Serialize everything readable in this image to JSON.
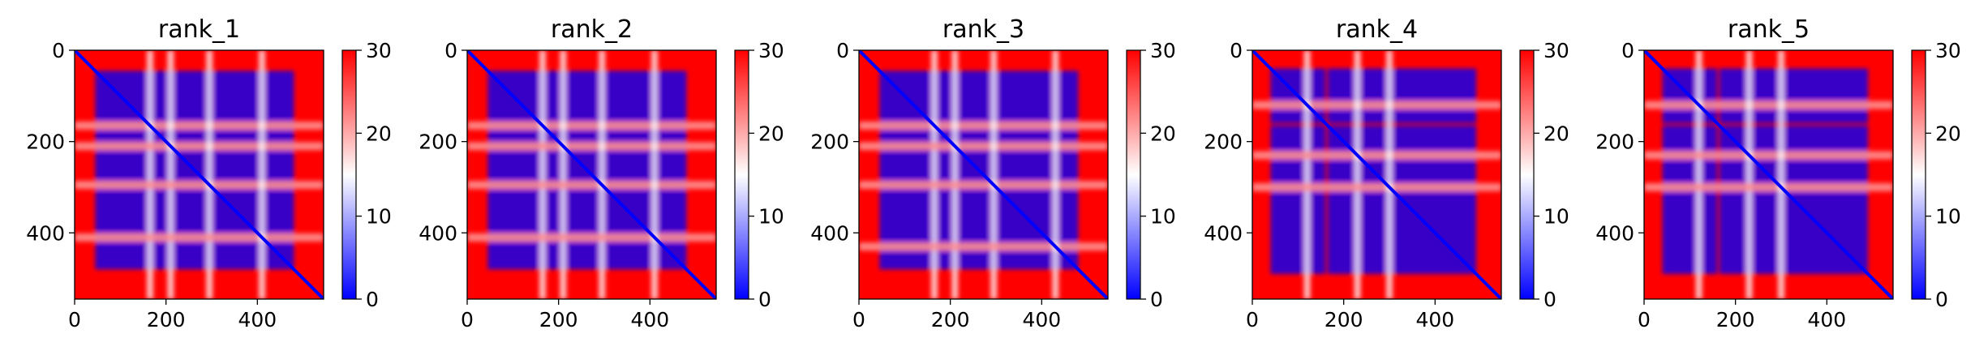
{
  "chart_data": [
    {
      "type": "heatmap",
      "title": "rank_1",
      "x_ticks": [
        0,
        200,
        400
      ],
      "y_ticks": [
        0,
        200,
        400
      ],
      "xlim": [
        0,
        545
      ],
      "ylim": [
        545,
        0
      ],
      "colorbar_ticks": [
        0,
        10,
        20,
        30
      ],
      "colorbar_range": [
        0,
        30
      ],
      "colormap": {
        "low": "#0000ff",
        "mid": "#ffffff",
        "high": "#ff0000"
      },
      "blocks": [
        [
          45,
          480
        ]
      ],
      "gaps": [
        165,
        210,
        295,
        410
      ]
    },
    {
      "type": "heatmap",
      "title": "rank_2",
      "x_ticks": [
        0,
        200,
        400
      ],
      "y_ticks": [
        0,
        200,
        400
      ],
      "xlim": [
        0,
        545
      ],
      "ylim": [
        545,
        0
      ],
      "colorbar_ticks": [
        0,
        10,
        20,
        30
      ],
      "colorbar_range": [
        0,
        30
      ],
      "colormap": {
        "low": "#0000ff",
        "mid": "#ffffff",
        "high": "#ff0000"
      },
      "blocks": [
        [
          45,
          480
        ]
      ],
      "gaps": [
        165,
        210,
        295,
        410
      ]
    },
    {
      "type": "heatmap",
      "title": "rank_3",
      "x_ticks": [
        0,
        200,
        400
      ],
      "y_ticks": [
        0,
        200,
        400
      ],
      "xlim": [
        0,
        545
      ],
      "ylim": [
        545,
        0
      ],
      "colorbar_ticks": [
        0,
        10,
        20,
        30
      ],
      "colorbar_range": [
        0,
        30
      ],
      "colormap": {
        "low": "#0000ff",
        "mid": "#ffffff",
        "high": "#ff0000"
      },
      "blocks": [
        [
          45,
          480
        ]
      ],
      "gaps": [
        165,
        210,
        295,
        430
      ]
    },
    {
      "type": "heatmap",
      "title": "rank_4",
      "x_ticks": [
        0,
        200,
        400
      ],
      "y_ticks": [
        0,
        200,
        400
      ],
      "xlim": [
        0,
        545
      ],
      "ylim": [
        545,
        0
      ],
      "colorbar_ticks": [
        0,
        10,
        20,
        30
      ],
      "colorbar_range": [
        0,
        30
      ],
      "colormap": {
        "low": "#0000ff",
        "mid": "#ffffff",
        "high": "#ff0000"
      },
      "blocks": [
        [
          40,
          160
        ],
        [
          165,
          490
        ]
      ],
      "gaps": [
        120,
        230,
        300
      ]
    },
    {
      "type": "heatmap",
      "title": "rank_5",
      "x_ticks": [
        0,
        200,
        400
      ],
      "y_ticks": [
        0,
        200,
        400
      ],
      "xlim": [
        0,
        545
      ],
      "ylim": [
        545,
        0
      ],
      "colorbar_ticks": [
        0,
        10,
        20,
        30
      ],
      "colorbar_range": [
        0,
        30
      ],
      "colormap": {
        "low": "#0000ff",
        "mid": "#ffffff",
        "high": "#ff0000"
      },
      "blocks": [
        [
          40,
          160
        ],
        [
          165,
          490
        ]
      ],
      "gaps": [
        120,
        230,
        300
      ]
    }
  ]
}
